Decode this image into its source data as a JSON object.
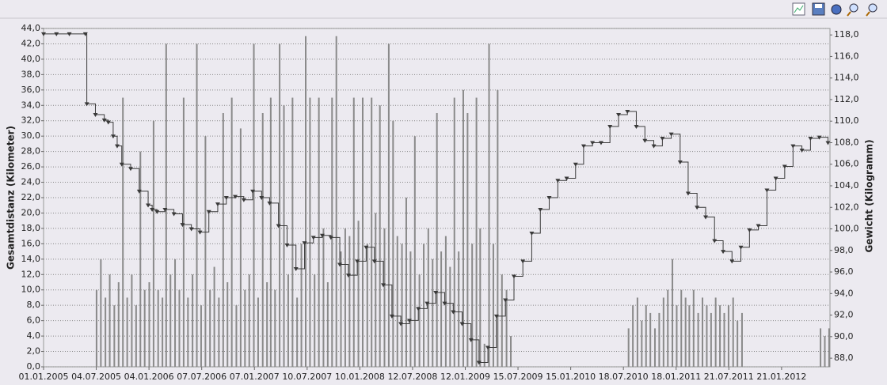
{
  "chart_data": {
    "type": "bar-line",
    "y_label": "Gesamtdistanz (Kilometer)",
    "y2_label": "Gewicht (Kilogramm)",
    "grid": true,
    "xlim": [
      "01.01.2005",
      "08.07.2012"
    ],
    "xticks": [
      "01.01.2005",
      "04.07.2005",
      "04.01.2006",
      "07.07.2006",
      "07.01.2007",
      "10.07.2007",
      "10.01.2008",
      "12.07.2008",
      "12.01.2009",
      "15.07.2009",
      "15.01.2010",
      "18.07.2010",
      "18.01.2011",
      "21.07.2011",
      "21.01.2012"
    ],
    "ylim": [
      0,
      44
    ],
    "yticks": [
      {
        "value": 0,
        "label": "0,0"
      },
      {
        "value": 2,
        "label": "2,0"
      },
      {
        "value": 4,
        "label": "4,0"
      },
      {
        "value": 6,
        "label": "6,0"
      },
      {
        "value": 8,
        "label": "8,0"
      },
      {
        "value": 10,
        "label": "10,0"
      },
      {
        "value": 12,
        "label": "12,0"
      },
      {
        "value": 14,
        "label": "14,0"
      },
      {
        "value": 16,
        "label": "16,0"
      },
      {
        "value": 18,
        "label": "18,0"
      },
      {
        "value": 20,
        "label": "20,0"
      },
      {
        "value": 22,
        "label": "22,0"
      },
      {
        "value": 24,
        "label": "24,0"
      },
      {
        "value": 26,
        "label": "26,0"
      },
      {
        "value": 28,
        "label": "28,0"
      },
      {
        "value": 30,
        "label": "30,0"
      },
      {
        "value": 32,
        "label": "32,0"
      },
      {
        "value": 34,
        "label": "34,0"
      },
      {
        "value": 36,
        "label": "36,0"
      },
      {
        "value": 38,
        "label": "38,0"
      },
      {
        "value": 40,
        "label": "40,0"
      },
      {
        "value": 42,
        "label": "42,0"
      },
      {
        "value": 44,
        "label": "44,0"
      }
    ],
    "y2lim": [
      87.2,
      118.6
    ],
    "y2ticks": [
      {
        "value": 88,
        "label": "88,0"
      },
      {
        "value": 90,
        "label": "90,0"
      },
      {
        "value": 92,
        "label": "92,0"
      },
      {
        "value": 94,
        "label": "94,0"
      },
      {
        "value": 96,
        "label": "96,0"
      },
      {
        "value": 98,
        "label": "98,0"
      },
      {
        "value": 100,
        "label": "100,0"
      },
      {
        "value": 102,
        "label": "102,0"
      },
      {
        "value": 104,
        "label": "104,0"
      },
      {
        "value": 106,
        "label": "106,0"
      },
      {
        "value": 108,
        "label": "108,0"
      },
      {
        "value": 110,
        "label": "110,0"
      },
      {
        "value": 112,
        "label": "112,0"
      },
      {
        "value": 114,
        "label": "114,0"
      },
      {
        "value": 116,
        "label": "116,0"
      },
      {
        "value": 118,
        "label": "118,0"
      }
    ],
    "series": [
      {
        "kind": "bar",
        "color": "#8a8a8a",
        "x": [
          "05.07.2005",
          "20.07.2005",
          "05.08.2005",
          "20.08.2005",
          "05.09.2005",
          "20.09.2005",
          "05.10.2005",
          "20.10.2005",
          "05.11.2005",
          "20.11.2005",
          "05.12.2005",
          "20.12.2005",
          "05.01.2006",
          "20.01.2006",
          "05.02.2006",
          "20.02.2006",
          "05.03.2006",
          "20.03.2006",
          "05.04.2006",
          "20.04.2006",
          "05.05.2006",
          "20.05.2006",
          "05.06.2006",
          "20.06.2006",
          "05.07.2006",
          "20.07.2006",
          "05.08.2006",
          "20.08.2006",
          "05.09.2006",
          "20.09.2006",
          "05.10.2006",
          "20.10.2006",
          "05.11.2006",
          "20.11.2006",
          "05.12.2006",
          "20.12.2006",
          "05.01.2007",
          "20.01.2007",
          "05.02.2007",
          "20.02.2007",
          "05.03.2007",
          "20.03.2007",
          "05.04.2007",
          "20.04.2007",
          "05.05.2007",
          "20.05.2007",
          "05.06.2007",
          "20.06.2007",
          "05.07.2007",
          "20.07.2007",
          "05.08.2007",
          "20.08.2007",
          "05.09.2007",
          "20.09.2007",
          "05.10.2007",
          "20.10.2007",
          "05.11.2007",
          "20.11.2007",
          "05.12.2007",
          "20.12.2007",
          "05.01.2008",
          "20.01.2008",
          "05.02.2008",
          "20.02.2008",
          "05.03.2008",
          "20.03.2008",
          "05.04.2008",
          "20.04.2008",
          "05.05.2008",
          "20.05.2008",
          "05.06.2008",
          "20.06.2008",
          "05.07.2008",
          "20.07.2008",
          "05.08.2008",
          "20.08.2008",
          "05.09.2008",
          "20.09.2008",
          "05.10.2008",
          "20.10.2008",
          "05.11.2008",
          "20.11.2008",
          "05.12.2008",
          "20.12.2008",
          "05.01.2009",
          "20.01.2009",
          "05.02.2009",
          "20.02.2009",
          "05.03.2009",
          "20.03.2009",
          "05.04.2009",
          "20.04.2009",
          "05.05.2009",
          "20.05.2009",
          "05.06.2009",
          "20.06.2009",
          "05.08.2010",
          "20.08.2010",
          "05.09.2010",
          "20.09.2010",
          "05.10.2010",
          "20.10.2010",
          "05.11.2010",
          "20.11.2010",
          "05.12.2010",
          "20.12.2010",
          "05.01.2011",
          "20.01.2011",
          "05.02.2011",
          "20.02.2011",
          "05.03.2011",
          "20.03.2011",
          "05.04.2011",
          "20.04.2011",
          "05.05.2011",
          "20.05.2011",
          "05.06.2011",
          "20.06.2011",
          "05.07.2011",
          "20.07.2011",
          "05.08.2011",
          "20.08.2011",
          "05.09.2011",
          "05.06.2012",
          "20.06.2012",
          "05.07.2012"
        ],
        "values": [
          10,
          14,
          9,
          12,
          8,
          11,
          35,
          9,
          12,
          8,
          28,
          10,
          11,
          32,
          10,
          9,
          42,
          12,
          14,
          10,
          35,
          9,
          12,
          42,
          8,
          30,
          10,
          13,
          9,
          33,
          11,
          35,
          8,
          31,
          10,
          12,
          42,
          9,
          33,
          11,
          35,
          10,
          42,
          34,
          12,
          35,
          9,
          16,
          43,
          35,
          12,
          35,
          18,
          11,
          35,
          43,
          15,
          18,
          17,
          35,
          19,
          35,
          16,
          35,
          20,
          34,
          18,
          42,
          32,
          17,
          16,
          22,
          15,
          30,
          12,
          16,
          18,
          14,
          33,
          15,
          17,
          13,
          35,
          15,
          36,
          33,
          16,
          35,
          18,
          3,
          42,
          16,
          36,
          12,
          10,
          4,
          5,
          8,
          9,
          6,
          8,
          7,
          5,
          7,
          9,
          10,
          14,
          8,
          10,
          9,
          8,
          10,
          7,
          9,
          8,
          7,
          9,
          8,
          7,
          8,
          9,
          6,
          7,
          5,
          4,
          5
        ]
      },
      {
        "kind": "line",
        "axis": "y2",
        "color": "#3a3a3a",
        "x": [
          "01.01.2005",
          "15.02.2005",
          "01.04.2005",
          "27.05.2005",
          "01.06.2005",
          "01.07.2005",
          "01.08.2005",
          "15.08.2005",
          "01.09.2005",
          "15.09.2005",
          "01.10.2005",
          "01.11.2005",
          "01.12.2005",
          "01.01.2006",
          "15.01.2006",
          "01.02.2006",
          "01.03.2006",
          "01.04.2006",
          "01.05.2006",
          "01.06.2006",
          "01.07.2006",
          "01.08.2006",
          "01.09.2006",
          "01.10.2006",
          "01.11.2006",
          "01.12.2006",
          "01.01.2007",
          "01.02.2007",
          "01.03.2007",
          "01.04.2007",
          "01.05.2007",
          "01.06.2007",
          "01.07.2007",
          "01.08.2007",
          "01.09.2007",
          "01.10.2007",
          "01.11.2007",
          "01.12.2007",
          "01.01.2008",
          "01.02.2008",
          "01.03.2008",
          "01.04.2008",
          "01.05.2008",
          "01.06.2008",
          "01.07.2008",
          "01.08.2008",
          "01.09.2008",
          "01.10.2008",
          "01.11.2008",
          "01.12.2008",
          "01.01.2009",
          "01.02.2009",
          "01.03.2009",
          "01.04.2009",
          "01.05.2009",
          "01.06.2009",
          "01.07.2009",
          "01.08.2009",
          "01.09.2009",
          "01.10.2009",
          "01.11.2009",
          "01.12.2009",
          "01.01.2010",
          "01.02.2010",
          "01.03.2010",
          "01.04.2010",
          "01.05.2010",
          "01.06.2010",
          "01.07.2010",
          "01.08.2010",
          "01.09.2010",
          "01.10.2010",
          "01.11.2010",
          "01.12.2010",
          "01.01.2011",
          "01.02.2011",
          "01.03.2011",
          "01.04.2011",
          "01.05.2011",
          "01.06.2011",
          "01.07.2011",
          "01.08.2011",
          "01.09.2011",
          "01.10.2011",
          "01.11.2011",
          "01.12.2011",
          "01.01.2012",
          "01.02.2012",
          "01.03.2012",
          "01.04.2012",
          "01.05.2012",
          "01.06.2012",
          "01.07.2012"
        ],
        "values": [
          118.1,
          118.1,
          118.1,
          118.1,
          111.6,
          110.6,
          110.1,
          109.9,
          108.6,
          107.7,
          106.0,
          105.6,
          103.5,
          102.2,
          101.8,
          101.6,
          101.8,
          101.4,
          100.4,
          100.0,
          99.7,
          101.6,
          102.3,
          102.9,
          103.0,
          102.7,
          103.5,
          102.9,
          102.4,
          100.3,
          98.5,
          96.3,
          98.7,
          99.2,
          99.4,
          99.2,
          96.7,
          95.7,
          97.0,
          98.3,
          97.0,
          94.8,
          91.9,
          91.2,
          91.5,
          92.6,
          93.1,
          94.1,
          93.1,
          92.3,
          91.2,
          89.7,
          87.6,
          89.0,
          91.9,
          93.4,
          95.6,
          97.0,
          99.6,
          101.8,
          102.9,
          104.5,
          104.7,
          106.0,
          107.7,
          108.0,
          108.0,
          109.5,
          110.6,
          110.9,
          109.5,
          108.2,
          107.7,
          108.4,
          108.8,
          106.2,
          103.3,
          102.0,
          101.1,
          98.9,
          97.9,
          97.0,
          98.3,
          99.9,
          100.3,
          103.6,
          104.7,
          105.8,
          107.7,
          107.3,
          108.4,
          108.5,
          108.0
        ]
      }
    ]
  }
}
